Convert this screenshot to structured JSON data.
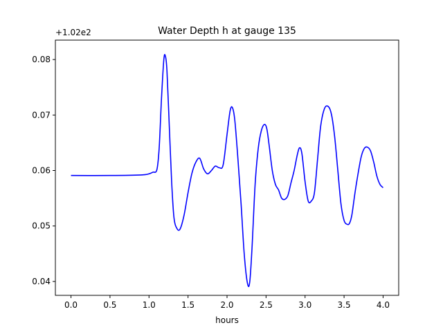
{
  "chart_data": {
    "type": "line",
    "title": "Water Depth h at gauge 135",
    "xlabel": "hours",
    "ylabel": "",
    "offset_text": "+1.02e2",
    "xlim": [
      -0.2,
      4.2
    ],
    "ylim": [
      0.0375,
      0.0835
    ],
    "xticks": [
      0.0,
      0.5,
      1.0,
      1.5,
      2.0,
      2.5,
      3.0,
      3.5,
      4.0
    ],
    "xtick_labels": [
      "0.0",
      "0.5",
      "1.0",
      "1.5",
      "2.0",
      "2.5",
      "3.0",
      "3.5",
      "4.0"
    ],
    "yticks": [
      0.04,
      0.05,
      0.06,
      0.07,
      0.08
    ],
    "ytick_labels": [
      "0.04",
      "0.05",
      "0.06",
      "0.07",
      "0.08"
    ],
    "grid": false,
    "series": [
      {
        "color": "#0000ff",
        "x": [
          0.0,
          0.5,
          0.9,
          1.0,
          1.05,
          1.1,
          1.13,
          1.16,
          1.19,
          1.21,
          1.23,
          1.26,
          1.29,
          1.32,
          1.36,
          1.4,
          1.45,
          1.5,
          1.55,
          1.6,
          1.65,
          1.7,
          1.75,
          1.8,
          1.85,
          1.9,
          1.95,
          2.0,
          2.04,
          2.07,
          2.1,
          2.14,
          2.18,
          2.22,
          2.26,
          2.29,
          2.32,
          2.36,
          2.4,
          2.44,
          2.48,
          2.51,
          2.54,
          2.58,
          2.62,
          2.66,
          2.7,
          2.74,
          2.78,
          2.82,
          2.86,
          2.9,
          2.93,
          2.96,
          3.0,
          3.04,
          3.08,
          3.12,
          3.16,
          3.2,
          3.25,
          3.3,
          3.34,
          3.38,
          3.42,
          3.46,
          3.5,
          3.54,
          3.57,
          3.6,
          3.64,
          3.68,
          3.72,
          3.76,
          3.8,
          3.84,
          3.88,
          3.92,
          3.96,
          4.0
        ],
        "y": [
          0.0591,
          0.0591,
          0.0592,
          0.0594,
          0.0597,
          0.0601,
          0.064,
          0.073,
          0.08,
          0.0806,
          0.078,
          0.068,
          0.058,
          0.0515,
          0.0495,
          0.0495,
          0.052,
          0.056,
          0.0595,
          0.0615,
          0.0622,
          0.0603,
          0.0594,
          0.06,
          0.0608,
          0.0605,
          0.061,
          0.0665,
          0.0708,
          0.0713,
          0.069,
          0.062,
          0.054,
          0.045,
          0.0398,
          0.0398,
          0.046,
          0.0575,
          0.064,
          0.0672,
          0.0683,
          0.0675,
          0.0645,
          0.06,
          0.0575,
          0.0565,
          0.055,
          0.0548,
          0.0555,
          0.0578,
          0.06,
          0.0628,
          0.0641,
          0.063,
          0.058,
          0.0545,
          0.0545,
          0.056,
          0.062,
          0.068,
          0.0712,
          0.0715,
          0.07,
          0.066,
          0.06,
          0.054,
          0.051,
          0.0503,
          0.0505,
          0.052,
          0.056,
          0.0595,
          0.0625,
          0.064,
          0.0642,
          0.0635,
          0.0615,
          0.059,
          0.0575,
          0.0569
        ]
      }
    ]
  }
}
